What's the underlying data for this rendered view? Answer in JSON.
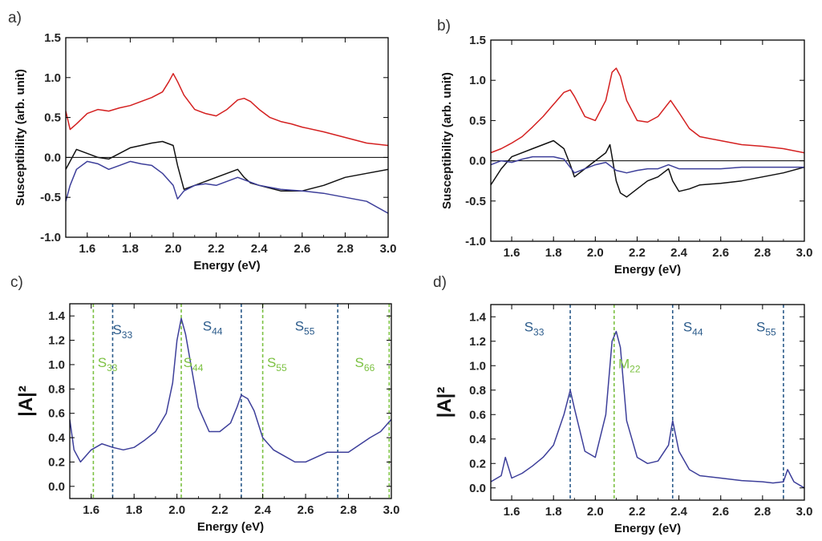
{
  "chart_data": [
    {
      "panel_label": "a)",
      "type": "line",
      "xlabel": "Energy (eV)",
      "ylabel": "Susceptibility (arb. unit)",
      "xlim": [
        1.5,
        3.0
      ],
      "ylim": [
        -1.0,
        1.5
      ],
      "xticks": [
        "1.6",
        "1.8",
        "2.0",
        "2.2",
        "2.4",
        "2.6",
        "2.8",
        "3.0"
      ],
      "yticks": [
        "-1.0",
        "-0.5",
        "0.0",
        "0.5",
        "1.0",
        "1.5"
      ],
      "zero_line": true,
      "series": [
        {
          "color": "#d42020",
          "x": [
            1.5,
            1.52,
            1.55,
            1.6,
            1.65,
            1.7,
            1.75,
            1.8,
            1.85,
            1.9,
            1.95,
            1.98,
            2.0,
            2.02,
            2.05,
            2.1,
            2.15,
            2.2,
            2.25,
            2.3,
            2.33,
            2.36,
            2.4,
            2.45,
            2.5,
            2.55,
            2.6,
            2.7,
            2.8,
            2.9,
            3.0
          ],
          "y": [
            0.58,
            0.35,
            0.42,
            0.55,
            0.6,
            0.58,
            0.62,
            0.65,
            0.7,
            0.75,
            0.82,
            0.95,
            1.05,
            0.95,
            0.78,
            0.6,
            0.55,
            0.52,
            0.6,
            0.72,
            0.74,
            0.7,
            0.6,
            0.5,
            0.45,
            0.42,
            0.38,
            0.32,
            0.25,
            0.18,
            0.15
          ]
        },
        {
          "color": "#111111",
          "x": [
            1.5,
            1.55,
            1.6,
            1.65,
            1.7,
            1.75,
            1.8,
            1.85,
            1.9,
            1.95,
            2.0,
            2.02,
            2.05,
            2.1,
            2.15,
            2.2,
            2.25,
            2.3,
            2.33,
            2.36,
            2.4,
            2.5,
            2.6,
            2.7,
            2.8,
            2.9,
            3.0
          ],
          "y": [
            -0.15,
            0.1,
            0.05,
            0.0,
            -0.02,
            0.05,
            0.12,
            0.15,
            0.18,
            0.2,
            0.15,
            -0.1,
            -0.4,
            -0.35,
            -0.3,
            -0.25,
            -0.2,
            -0.15,
            -0.25,
            -0.32,
            -0.35,
            -0.42,
            -0.42,
            -0.35,
            -0.25,
            -0.2,
            -0.15
          ]
        },
        {
          "color": "#3d3f9a",
          "x": [
            1.5,
            1.52,
            1.55,
            1.6,
            1.65,
            1.7,
            1.75,
            1.8,
            1.85,
            1.9,
            1.95,
            2.0,
            2.02,
            2.05,
            2.1,
            2.15,
            2.2,
            2.25,
            2.3,
            2.35,
            2.4,
            2.5,
            2.6,
            2.7,
            2.8,
            2.9,
            3.0
          ],
          "y": [
            -0.55,
            -0.35,
            -0.15,
            -0.05,
            -0.08,
            -0.15,
            -0.1,
            -0.05,
            -0.08,
            -0.1,
            -0.2,
            -0.35,
            -0.52,
            -0.42,
            -0.35,
            -0.33,
            -0.35,
            -0.3,
            -0.25,
            -0.3,
            -0.35,
            -0.4,
            -0.42,
            -0.45,
            -0.5,
            -0.55,
            -0.7
          ]
        }
      ]
    },
    {
      "panel_label": "b)",
      "type": "line",
      "xlabel": "Energy (eV)",
      "ylabel": "Susceptibility (arb. unit)",
      "xlim": [
        1.5,
        3.0
      ],
      "ylim": [
        -1.0,
        1.5
      ],
      "xticks": [
        "1.6",
        "1.8",
        "2.0",
        "2.2",
        "2.4",
        "2.6",
        "2.8",
        "3.0"
      ],
      "yticks": [
        "-1.0",
        "-0.5",
        "0.0",
        "0.5",
        "1.0",
        "1.5"
      ],
      "zero_line": true,
      "series": [
        {
          "color": "#d42020",
          "x": [
            1.5,
            1.55,
            1.6,
            1.65,
            1.7,
            1.75,
            1.8,
            1.85,
            1.88,
            1.9,
            1.95,
            2.0,
            2.05,
            2.08,
            2.1,
            2.12,
            2.15,
            2.2,
            2.25,
            2.3,
            2.36,
            2.4,
            2.45,
            2.5,
            2.6,
            2.7,
            2.8,
            2.9,
            3.0
          ],
          "y": [
            0.1,
            0.15,
            0.22,
            0.3,
            0.42,
            0.55,
            0.7,
            0.85,
            0.88,
            0.8,
            0.55,
            0.5,
            0.75,
            1.1,
            1.15,
            1.05,
            0.75,
            0.5,
            0.48,
            0.55,
            0.75,
            0.6,
            0.4,
            0.3,
            0.25,
            0.2,
            0.18,
            0.15,
            0.1
          ]
        },
        {
          "color": "#111111",
          "x": [
            1.5,
            1.55,
            1.6,
            1.65,
            1.7,
            1.75,
            1.8,
            1.85,
            1.88,
            1.9,
            1.95,
            2.0,
            2.05,
            2.07,
            2.08,
            2.1,
            2.12,
            2.15,
            2.2,
            2.25,
            2.3,
            2.35,
            2.37,
            2.4,
            2.45,
            2.5,
            2.6,
            2.7,
            2.8,
            2.9,
            3.0
          ],
          "y": [
            -0.3,
            -0.1,
            0.05,
            0.1,
            0.15,
            0.2,
            0.25,
            0.15,
            -0.05,
            -0.2,
            -0.1,
            0.0,
            0.1,
            0.2,
            0.05,
            -0.25,
            -0.4,
            -0.45,
            -0.35,
            -0.25,
            -0.2,
            -0.1,
            -0.25,
            -0.38,
            -0.35,
            -0.3,
            -0.28,
            -0.25,
            -0.2,
            -0.15,
            -0.08
          ]
        },
        {
          "color": "#3d3f9a",
          "x": [
            1.5,
            1.55,
            1.6,
            1.65,
            1.7,
            1.75,
            1.8,
            1.85,
            1.9,
            1.95,
            2.0,
            2.05,
            2.1,
            2.15,
            2.2,
            2.25,
            2.3,
            2.35,
            2.4,
            2.5,
            2.6,
            2.7,
            2.8,
            2.9,
            3.0
          ],
          "y": [
            -0.05,
            0.0,
            -0.02,
            0.02,
            0.05,
            0.05,
            0.05,
            0.02,
            -0.15,
            -0.1,
            -0.05,
            -0.02,
            -0.12,
            -0.15,
            -0.12,
            -0.1,
            -0.1,
            -0.05,
            -0.1,
            -0.1,
            -0.1,
            -0.08,
            -0.08,
            -0.08,
            -0.08
          ]
        }
      ]
    },
    {
      "panel_label": "c)",
      "type": "line",
      "xlabel": "Energy (eV)",
      "ylabel": "|A|²",
      "xlim": [
        1.5,
        3.0
      ],
      "ylim": [
        -0.1,
        1.5
      ],
      "xticks": [
        "1.6",
        "1.8",
        "2.0",
        "2.2",
        "2.4",
        "2.6",
        "2.8",
        "3.0"
      ],
      "yticks": [
        "0.0",
        "0.2",
        "0.4",
        "0.6",
        "0.8",
        "1.0",
        "1.2",
        "1.4"
      ],
      "series": [
        {
          "color": "#3d3f9a",
          "x": [
            1.5,
            1.52,
            1.55,
            1.6,
            1.65,
            1.7,
            1.75,
            1.8,
            1.85,
            1.9,
            1.95,
            1.98,
            2.0,
            2.02,
            2.04,
            2.06,
            2.1,
            2.15,
            2.2,
            2.25,
            2.28,
            2.3,
            2.33,
            2.36,
            2.4,
            2.45,
            2.5,
            2.55,
            2.6,
            2.7,
            2.8,
            2.9,
            2.95,
            3.0
          ],
          "y": [
            0.55,
            0.3,
            0.2,
            0.3,
            0.35,
            0.32,
            0.3,
            0.32,
            0.38,
            0.45,
            0.6,
            0.85,
            1.2,
            1.38,
            1.25,
            1.05,
            0.65,
            0.45,
            0.45,
            0.52,
            0.65,
            0.75,
            0.72,
            0.62,
            0.4,
            0.3,
            0.25,
            0.2,
            0.2,
            0.28,
            0.28,
            0.4,
            0.45,
            0.55
          ]
        }
      ],
      "vlines": [
        {
          "x": 1.61,
          "color": "#7cc142"
        },
        {
          "x": 1.7,
          "color": "#2a5a8a"
        },
        {
          "x": 2.02,
          "color": "#7cc142"
        },
        {
          "x": 2.3,
          "color": "#2a5a8a"
        },
        {
          "x": 2.4,
          "color": "#7cc142"
        },
        {
          "x": 2.75,
          "color": "#2a5a8a"
        },
        {
          "x": 2.99,
          "color": "#7cc142"
        }
      ],
      "annotations": [
        {
          "main": "S",
          "sub": "33",
          "color": "#2a5a8a",
          "x": 1.7,
          "y": 1.25
        },
        {
          "main": "S",
          "sub": "33",
          "color": "#7cc142",
          "x": 1.63,
          "y": 0.98
        },
        {
          "main": "S",
          "sub": "44",
          "color": "#2a5a8a",
          "x": 2.12,
          "y": 1.28
        },
        {
          "main": "S",
          "sub": "44",
          "color": "#7cc142",
          "x": 2.03,
          "y": 0.98
        },
        {
          "main": "S",
          "sub": "55",
          "color": "#2a5a8a",
          "x": 2.55,
          "y": 1.28
        },
        {
          "main": "S",
          "sub": "55",
          "color": "#7cc142",
          "x": 2.42,
          "y": 0.98
        },
        {
          "main": "S",
          "sub": "66",
          "color": "#7cc142",
          "x": 2.83,
          "y": 0.98
        }
      ]
    },
    {
      "panel_label": "d)",
      "type": "line",
      "xlabel": "Energy (eV)",
      "ylabel": "|A|²",
      "xlim": [
        1.5,
        3.0
      ],
      "ylim": [
        -0.1,
        1.5
      ],
      "xticks": [
        "1.6",
        "1.8",
        "2.0",
        "2.2",
        "2.4",
        "2.6",
        "2.8",
        "3.0"
      ],
      "yticks": [
        "0.0",
        "0.2",
        "0.4",
        "0.6",
        "0.8",
        "1.0",
        "1.2",
        "1.4"
      ],
      "series": [
        {
          "color": "#3d3f9a",
          "x": [
            1.5,
            1.55,
            1.57,
            1.6,
            1.65,
            1.7,
            1.75,
            1.8,
            1.85,
            1.88,
            1.9,
            1.95,
            2.0,
            2.05,
            2.08,
            2.1,
            2.12,
            2.15,
            2.2,
            2.25,
            2.3,
            2.35,
            2.37,
            2.4,
            2.45,
            2.5,
            2.6,
            2.7,
            2.8,
            2.85,
            2.9,
            2.92,
            2.95,
            3.0
          ],
          "y": [
            0.05,
            0.1,
            0.25,
            0.08,
            0.12,
            0.18,
            0.25,
            0.35,
            0.6,
            0.8,
            0.65,
            0.3,
            0.25,
            0.6,
            1.2,
            1.28,
            1.15,
            0.55,
            0.25,
            0.2,
            0.22,
            0.35,
            0.55,
            0.3,
            0.15,
            0.1,
            0.08,
            0.06,
            0.05,
            0.04,
            0.05,
            0.15,
            0.05,
            0.0
          ]
        }
      ],
      "vlines": [
        {
          "x": 1.88,
          "color": "#2a5a8a"
        },
        {
          "x": 2.09,
          "color": "#7cc142"
        },
        {
          "x": 2.37,
          "color": "#2a5a8a"
        },
        {
          "x": 2.9,
          "color": "#2a5a8a"
        }
      ],
      "annotations": [
        {
          "main": "S",
          "sub": "33",
          "color": "#2a5a8a",
          "x": 1.66,
          "y": 1.28
        },
        {
          "main": "M",
          "sub": "22",
          "color": "#7cc142",
          "x": 2.11,
          "y": 0.98
        },
        {
          "main": "S",
          "sub": "44",
          "color": "#2a5a8a",
          "x": 2.42,
          "y": 1.28
        },
        {
          "main": "S",
          "sub": "55",
          "color": "#2a5a8a",
          "x": 2.77,
          "y": 1.28
        }
      ]
    }
  ]
}
